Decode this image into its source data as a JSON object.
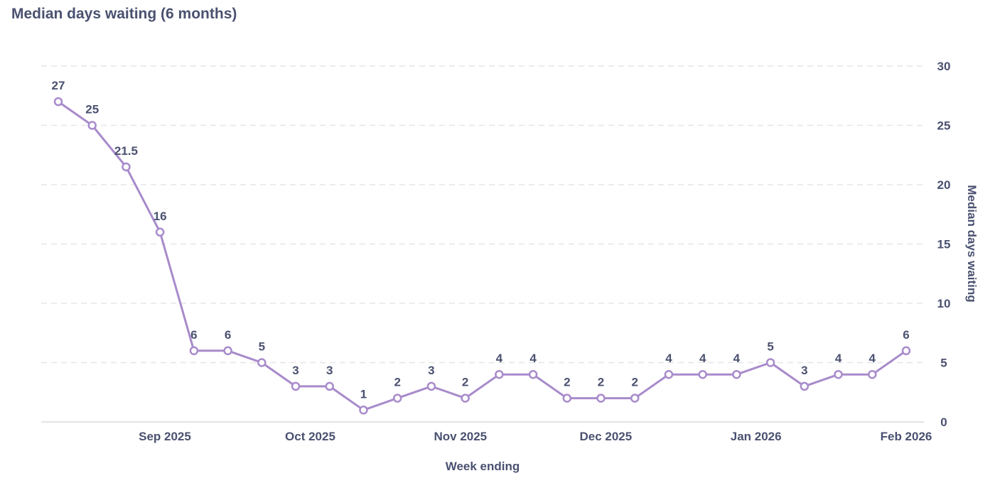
{
  "chart_data": {
    "type": "line",
    "title": "Median days waiting (6 months)",
    "xlabel": "Week ending",
    "ylabel": "Median days waiting",
    "ylim": [
      0,
      30
    ],
    "yticks": [
      0,
      5,
      10,
      15,
      20,
      25,
      30
    ],
    "y_axis_position": "right",
    "grid": "horizontal dashed",
    "x_ticks": [
      {
        "date": "2025-09-01",
        "label": "Sep 2025"
      },
      {
        "date": "2025-10-01",
        "label": "Oct 2025"
      },
      {
        "date": "2025-11-01",
        "label": "Nov 2025"
      },
      {
        "date": "2025-12-01",
        "label": "Dec 2025"
      },
      {
        "date": "2026-01-01",
        "label": "Jan 2026"
      },
      {
        "date": "2026-02-01",
        "label": "Feb 2026"
      }
    ],
    "x": [
      "2025-08-10",
      "2025-08-17",
      "2025-08-24",
      "2025-08-31",
      "2025-09-07",
      "2025-09-14",
      "2025-09-21",
      "2025-09-28",
      "2025-10-05",
      "2025-10-12",
      "2025-10-19",
      "2025-10-26",
      "2025-11-02",
      "2025-11-09",
      "2025-11-16",
      "2025-11-23",
      "2025-11-30",
      "2025-12-07",
      "2025-12-14",
      "2025-12-21",
      "2025-12-28",
      "2026-01-04",
      "2026-01-11",
      "2026-01-18",
      "2026-01-25",
      "2026-02-01"
    ],
    "series": [
      {
        "values": [
          27,
          25,
          21.5,
          16,
          6,
          6,
          5,
          3,
          3,
          1,
          2,
          3,
          2,
          4,
          4,
          2,
          2,
          2,
          4,
          4,
          4,
          5,
          3,
          4,
          4,
          6
        ],
        "color": "#a88bcb"
      }
    ]
  }
}
